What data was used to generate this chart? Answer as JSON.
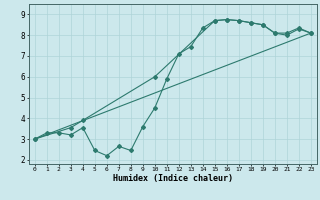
{
  "xlabel": "Humidex (Indice chaleur)",
  "bg_color": "#cce8ec",
  "line_color": "#2d7a6e",
  "grid_color": "#afd4d8",
  "xlim": [
    -0.5,
    23.5
  ],
  "ylim": [
    1.8,
    9.5
  ],
  "xticks": [
    0,
    1,
    2,
    3,
    4,
    5,
    6,
    7,
    8,
    9,
    10,
    11,
    12,
    13,
    14,
    15,
    16,
    17,
    18,
    19,
    20,
    21,
    22,
    23
  ],
  "yticks": [
    2,
    3,
    4,
    5,
    6,
    7,
    8,
    9
  ],
  "line1_x": [
    0,
    1,
    2,
    3,
    4,
    5,
    6,
    7,
    8,
    9,
    10,
    11,
    12,
    13,
    14,
    15,
    16,
    17,
    18,
    19,
    20,
    21,
    22,
    23
  ],
  "line1_y": [
    3.0,
    3.3,
    3.3,
    3.2,
    3.55,
    2.45,
    2.2,
    2.65,
    2.45,
    3.6,
    4.5,
    5.9,
    7.1,
    7.45,
    8.35,
    8.7,
    8.75,
    8.7,
    8.6,
    8.5,
    8.1,
    8.1,
    8.35,
    8.1
  ],
  "line2_x": [
    0,
    3,
    4,
    10,
    15,
    16,
    17,
    18,
    19,
    20,
    21,
    22,
    23
  ],
  "line2_y": [
    3.0,
    3.55,
    3.9,
    6.0,
    8.7,
    8.75,
    8.7,
    8.6,
    8.5,
    8.1,
    8.0,
    8.3,
    8.1
  ],
  "line3_x": [
    0,
    23
  ],
  "line3_y": [
    3.0,
    8.1
  ]
}
